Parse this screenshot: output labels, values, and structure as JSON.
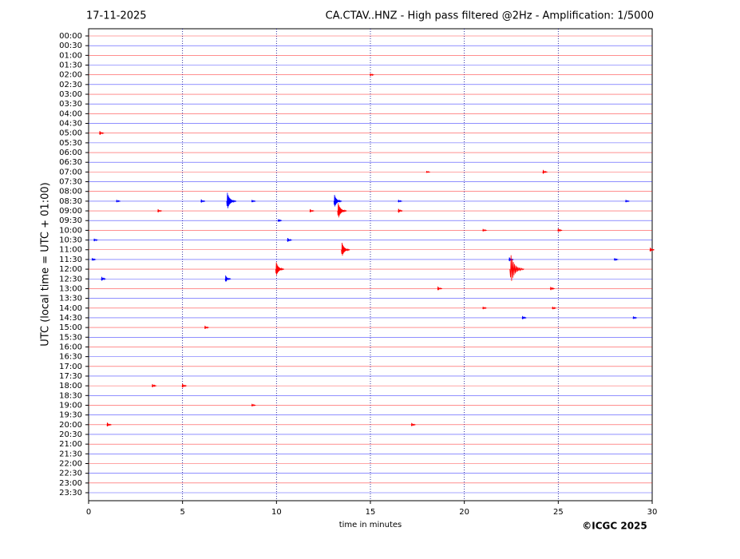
{
  "chart_data": {
    "type": "helicorder",
    "date": "17-11-2025",
    "title": "CA.CTAV..HNZ - High pass filtered @2Hz - Amplification: 1/5000",
    "xlabel": "time in minutes",
    "ylabel": "UTC (local time = UTC + 01:00)",
    "credit": "©ICGC 2025",
    "categories": [
      "00:00",
      "00:30",
      "01:00",
      "01:30",
      "02:00",
      "02:30",
      "03:00",
      "03:30",
      "04:00",
      "04:30",
      "05:00",
      "05:30",
      "06:00",
      "06:30",
      "07:00",
      "07:30",
      "08:00",
      "08:30",
      "09:00",
      "09:30",
      "10:00",
      "10:30",
      "11:00",
      "11:30",
      "12:00",
      "12:30",
      "13:00",
      "13:30",
      "14:00",
      "14:30",
      "15:00",
      "15:30",
      "16:00",
      "16:30",
      "17:00",
      "17:30",
      "18:00",
      "18:30",
      "19:00",
      "19:30",
      "20:00",
      "20:30",
      "21:00",
      "21:30",
      "22:00",
      "22:30",
      "23:00",
      "23:30"
    ],
    "row_colors": [
      "#ff0000",
      "#0000ff"
    ],
    "xlim": [
      0,
      30
    ],
    "xticks": [
      0,
      5,
      10,
      15,
      20,
      25,
      30
    ],
    "grid": true,
    "events": [
      {
        "row": 4,
        "x": 15,
        "amplitude": 0.2
      },
      {
        "row": 10,
        "x": 0.6,
        "amplitude": 0.3
      },
      {
        "row": 14,
        "x": 18,
        "amplitude": 0.15
      },
      {
        "row": 14,
        "x": 24.2,
        "amplitude": 0.3
      },
      {
        "row": 17,
        "x": 1.5,
        "amplitude": 0.2
      },
      {
        "row": 17,
        "x": 6,
        "amplitude": 0.25
      },
      {
        "row": 17,
        "x": 7.4,
        "amplitude": 1.2
      },
      {
        "row": 17,
        "x": 8.7,
        "amplitude": 0.2
      },
      {
        "row": 17,
        "x": 13.1,
        "amplitude": 0.9
      },
      {
        "row": 17,
        "x": 16.5,
        "amplitude": 0.2
      },
      {
        "row": 17,
        "x": 28.6,
        "amplitude": 0.2
      },
      {
        "row": 18,
        "x": 3.7,
        "amplitude": 0.25
      },
      {
        "row": 18,
        "x": 11.8,
        "amplitude": 0.25
      },
      {
        "row": 18,
        "x": 13.3,
        "amplitude": 1.1
      },
      {
        "row": 18,
        "x": 16.5,
        "amplitude": 0.3
      },
      {
        "row": 19,
        "x": 10.1,
        "amplitude": 0.2
      },
      {
        "row": 20,
        "x": 21,
        "amplitude": 0.2
      },
      {
        "row": 20,
        "x": 25,
        "amplitude": 0.25
      },
      {
        "row": 21,
        "x": 0.3,
        "amplitude": 0.2
      },
      {
        "row": 21,
        "x": 10.6,
        "amplitude": 0.3
      },
      {
        "row": 22,
        "x": 13.5,
        "amplitude": 1.0
      },
      {
        "row": 22,
        "x": 29.9,
        "amplitude": 0.3
      },
      {
        "row": 23,
        "x": 0.2,
        "amplitude": 0.2
      },
      {
        "row": 23,
        "x": 22.4,
        "amplitude": 0.3
      },
      {
        "row": 23,
        "x": 28,
        "amplitude": 0.2
      },
      {
        "row": 24,
        "x": 10,
        "amplitude": 1.0
      },
      {
        "row": 24,
        "x": 22.5,
        "amplitude": 2.0
      },
      {
        "row": 25,
        "x": 0.7,
        "amplitude": 0.3
      },
      {
        "row": 25,
        "x": 7.3,
        "amplitude": 0.5
      },
      {
        "row": 26,
        "x": 18.6,
        "amplitude": 0.3
      },
      {
        "row": 26,
        "x": 24.6,
        "amplitude": 0.25
      },
      {
        "row": 28,
        "x": 21,
        "amplitude": 0.2
      },
      {
        "row": 28,
        "x": 24.7,
        "amplitude": 0.2
      },
      {
        "row": 29,
        "x": 23.1,
        "amplitude": 0.25
      },
      {
        "row": 29,
        "x": 29,
        "amplitude": 0.2
      },
      {
        "row": 30,
        "x": 6.2,
        "amplitude": 0.25
      },
      {
        "row": 36,
        "x": 3.4,
        "amplitude": 0.25
      },
      {
        "row": 36,
        "x": 5,
        "amplitude": 0.3
      },
      {
        "row": 38,
        "x": 8.7,
        "amplitude": 0.2
      },
      {
        "row": 40,
        "x": 1,
        "amplitude": 0.3
      },
      {
        "row": 40,
        "x": 17.2,
        "amplitude": 0.25
      }
    ]
  }
}
